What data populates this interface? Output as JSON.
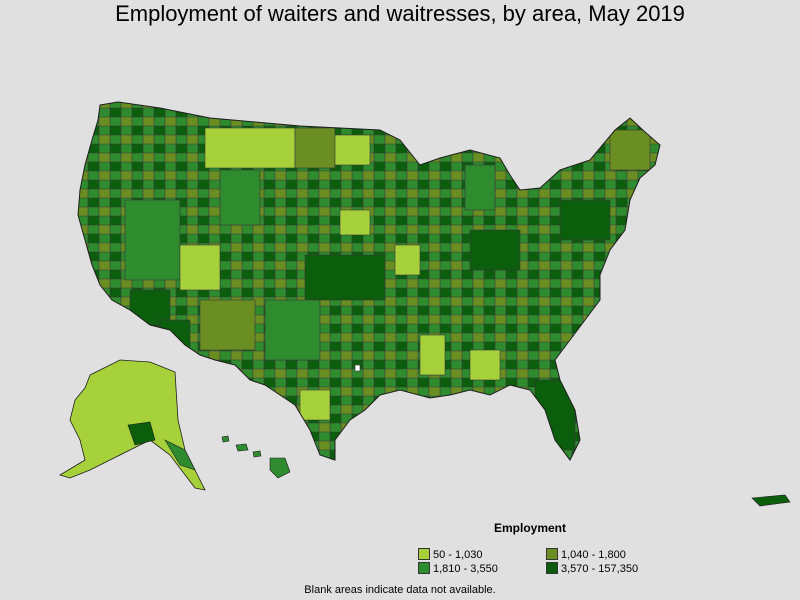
{
  "title": "Employment of waiters and waitresses, by area, May 2019",
  "colors": {
    "background": "#e0e0e0",
    "class1": "#a6d13b",
    "class2": "#6b8e23",
    "class3": "#2e8b2e",
    "class4": "#0b5e0b",
    "border": "#3a3a3a"
  },
  "legend": {
    "title": "Employment",
    "items": [
      {
        "label": "50 - 1,030",
        "color": "#a6d13b"
      },
      {
        "label": "1,040 - 1,800",
        "color": "#6b8e23"
      },
      {
        "label": "1,810 - 3,550",
        "color": "#2e8b2e"
      },
      {
        "label": "3,570 - 157,350",
        "color": "#0b5e0b"
      }
    ]
  },
  "footnote": "Blank areas indicate data not available.",
  "map": {
    "regions": [
      "contiguous-us",
      "alaska",
      "hawaii",
      "puerto-rico"
    ]
  }
}
